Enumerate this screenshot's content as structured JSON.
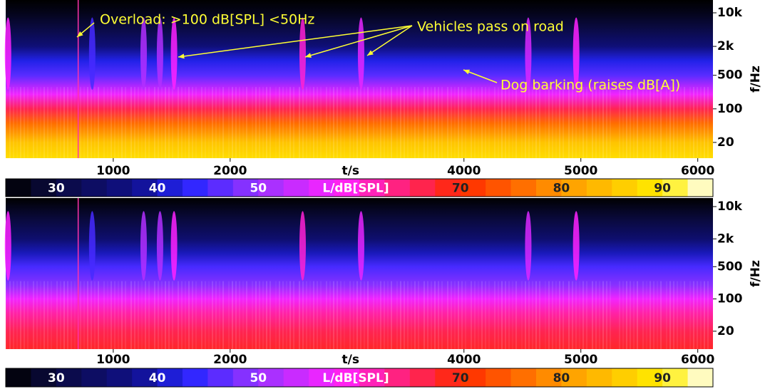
{
  "chart_data": [
    {
      "type": "spectrogram",
      "xlabel": "t/s",
      "ylabel": "f/Hz",
      "xlim": [
        80,
        6130
      ],
      "xticks": [
        1000,
        2000,
        4000,
        5000,
        6000
      ],
      "ylim": [
        9.4,
        18500
      ],
      "log_y": true,
      "yticks": [
        {
          "value": 10000,
          "label": "10k"
        },
        {
          "value": 2000,
          "label": "2k"
        },
        500,
        100,
        20
      ],
      "freqs": [
        9.4,
        20,
        50,
        100,
        200,
        500,
        1000,
        2000,
        5000,
        10000,
        18500
      ],
      "levels": [
        88,
        85,
        76,
        66,
        57,
        46,
        42,
        36,
        30,
        27,
        25
      ],
      "peaks": {
        "x": [
          100,
          820,
          1260,
          1400,
          1520,
          2620,
          3120,
          4550,
          4960
        ],
        "values": [
          58,
          45,
          52,
          52,
          58,
          60,
          56,
          55,
          58
        ]
      },
      "overload": 700,
      "annotations": [
        "Overload: >100 dB[SPL] <50Hz",
        "Vehicles pass on road",
        "Dog barking (raises dB[A])"
      ],
      "colorbar": {
        "label": "L/dB[SPL]",
        "lim": [
          25,
          95
        ],
        "ticks": [
          30,
          40,
          50,
          70,
          80,
          90
        ],
        "colorscale": [
          [
            25,
            "#000000"
          ],
          [
            30,
            "#0a0a40"
          ],
          [
            38,
            "#10108a"
          ],
          [
            43,
            "#2626ff"
          ],
          [
            50,
            "#9a33ff"
          ],
          [
            58,
            "#ff22ff"
          ],
          [
            65,
            "#ff2266"
          ],
          [
            70,
            "#ff2a00"
          ],
          [
            80,
            "#ff9900"
          ],
          [
            90,
            "#ffee00"
          ],
          [
            95,
            "#ffffff"
          ]
        ]
      }
    },
    {
      "type": "spectrogram",
      "xlabel": "t/s",
      "ylabel": "f/Hz",
      "xlim": [
        80,
        6130
      ],
      "xticks": [
        1000,
        2000,
        4000,
        5000,
        6000
      ],
      "ylim": [
        8.2,
        15300
      ],
      "log_y": true,
      "yticks": [
        {
          "value": 10000,
          "label": "10k"
        },
        {
          "value": 2000,
          "label": "2k"
        },
        500,
        100,
        20
      ],
      "freqs": [
        8.2,
        20,
        50,
        100,
        200,
        500,
        1000,
        2000,
        5000,
        10000,
        15300
      ],
      "levels": [
        68,
        66,
        62,
        57,
        49,
        45,
        40,
        35,
        30,
        27,
        25
      ],
      "peaks": {
        "x": [
          100,
          820,
          1260,
          1400,
          1520,
          2620,
          3120,
          4550,
          4960
        ],
        "values": [
          58,
          45,
          52,
          52,
          58,
          60,
          56,
          55,
          58
        ]
      },
      "overload": 700,
      "colorbar": {
        "label": "L/dB[SPL]",
        "lim": [
          25,
          95
        ],
        "ticks": [
          30,
          40,
          50,
          70,
          80,
          90
        ],
        "colorscale": [
          [
            25,
            "#000000"
          ],
          [
            30,
            "#0a0a40"
          ],
          [
            38,
            "#10108a"
          ],
          [
            43,
            "#2626ff"
          ],
          [
            50,
            "#9a33ff"
          ],
          [
            58,
            "#ff22ff"
          ],
          [
            65,
            "#ff2266"
          ],
          [
            70,
            "#ff2a00"
          ],
          [
            80,
            "#ff9900"
          ],
          [
            90,
            "#ffee00"
          ],
          [
            95,
            "#ffffff"
          ]
        ]
      }
    }
  ]
}
